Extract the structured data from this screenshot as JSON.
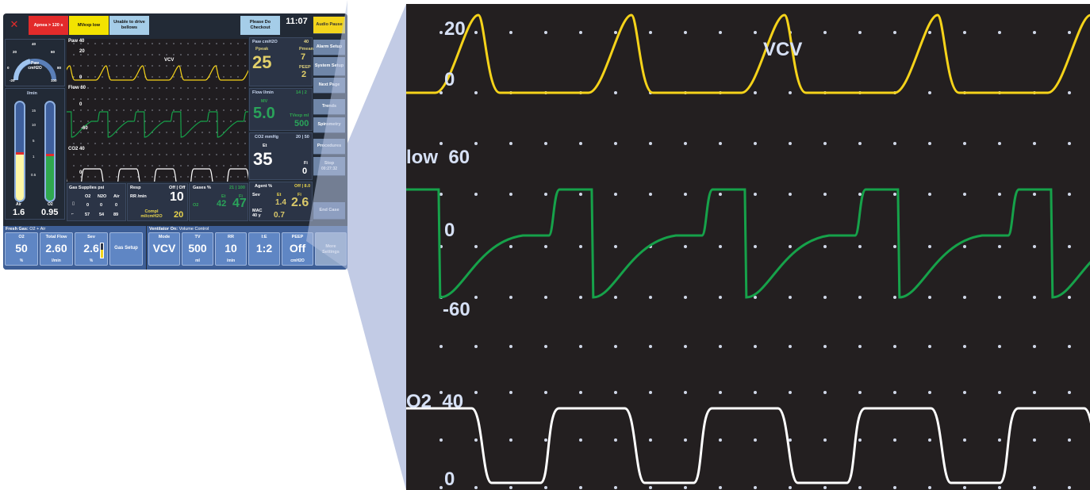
{
  "alarms": [
    {
      "text": "Apnea > 120 s",
      "color": "#e32b2b",
      "fg": "#ffffff"
    },
    {
      "text": "MVexp low",
      "color": "#f3e300",
      "fg": "#1a1a1a"
    },
    {
      "text": "Unable to drive bellows",
      "color": "#a5cde8",
      "fg": "#1a1a1a"
    },
    {
      "text": "Please Do Checkout",
      "color": "#a5cde8",
      "fg": "#1a1a1a"
    }
  ],
  "clock": "11:07",
  "side_buttons": [
    "Audio Pause",
    "Alarm Setup",
    "System Setup",
    "Next Page",
    "Trends",
    "Spirometry",
    "Procedures"
  ],
  "timer": {
    "label": "Stop",
    "value": "00:27:32"
  },
  "end_case": "End Case",
  "gauge": {
    "label": "Paw",
    "unit": "cmH2O",
    "ticks": [
      "-20",
      "0",
      "20",
      "40",
      "60",
      "80",
      "100"
    ]
  },
  "flowtubes": {
    "unit": "l/min",
    "scale": [
      "15",
      "10",
      "5",
      "1",
      "0.5"
    ],
    "air_label": "Air",
    "air_value": "1.6",
    "o2_label": "O2",
    "o2_value": "0.95"
  },
  "waves": {
    "paw": {
      "label": "Paw",
      "top": "40",
      "mid": "20",
      "bottom": "0",
      "mode": "VCV"
    },
    "flow": {
      "label": "Flow",
      "top": "60",
      "mid": "0",
      "bottom": "-60"
    },
    "co2": {
      "label": "CO2",
      "top": "40",
      "bottom": "0"
    }
  },
  "paw_numeric": {
    "title": "Paw cmH2O",
    "limit": "40",
    "ppeak_label": "Ppeak",
    "ppeak": "25",
    "pmean_label": "Pmean",
    "pmean": "7",
    "peep_label": "PEEP",
    "peep": "2"
  },
  "flow_numeric": {
    "title": "Flow l/min",
    "limits": "14 | 2",
    "mv_label": "MV",
    "mv": "5.0",
    "tvexp_label": "TVexp ml",
    "tvexp": "500"
  },
  "co2_numeric": {
    "title": "CO2 mmHg",
    "limits": "20 | 50",
    "et_label": "Et",
    "et": "35",
    "fi_label": "Fi",
    "fi": "0"
  },
  "gas_supplies": {
    "title": "Gas Supplies psi",
    "headers": [
      "O2",
      "N2O",
      "Air"
    ],
    "row1": [
      "0",
      "0",
      "0"
    ],
    "row2": [
      "57",
      "54",
      "89"
    ]
  },
  "resp": {
    "title": "Resp",
    "status": "Off | Off",
    "rr_label": "RR /min",
    "rr": "10",
    "compl_label": "Compl ml/cmH2O",
    "compl": "20"
  },
  "gases": {
    "title": "Gases %",
    "limits": "21 | 100",
    "et_label": "Et",
    "fi_label": "Fi",
    "o2_label": "O2",
    "et": "42",
    "fi": "47"
  },
  "agent": {
    "title": "Agent %",
    "limits": "Off | 8.0",
    "sev_label": "Sev",
    "et_label": "Et",
    "fi_label": "Fi",
    "et": "1.4",
    "fi": "2.6",
    "mac_label": "MAC 40 y",
    "mac": "0.7"
  },
  "fresh_gas": {
    "title": "Fresh Gas:",
    "mix": "O2 + Air",
    "o2_label": "O2",
    "o2": "50",
    "o2_unit": "%",
    "total_label": "Total Flow",
    "total": "2.60",
    "total_unit": "l/min",
    "sev_label": "Sev",
    "sev": "2.6",
    "sev_unit": "%",
    "setup": "Gas Setup"
  },
  "ventilator": {
    "title": "Ventilator On:",
    "mode_desc": "Volume Control",
    "settings": [
      {
        "label": "Mode",
        "value": "VCV",
        "unit": ""
      },
      {
        "label": "TV",
        "value": "500",
        "unit": "ml"
      },
      {
        "label": "RR",
        "value": "10",
        "unit": "/min"
      },
      {
        "label": "I:E",
        "value": "1:2",
        "unit": ""
      },
      {
        "label": "PEEP",
        "value": "Off",
        "unit": "cmH2O"
      }
    ],
    "more": "More Settings"
  },
  "zoom": {
    "paw_top": "20",
    "paw_zero": "0",
    "paw_mode": "VCV",
    "flow_label": "low",
    "flow_top": "60",
    "flow_zero": "0",
    "flow_bottom": "-60",
    "co2_label": "O2",
    "co2_top": "40",
    "co2_zero": "0"
  },
  "colors": {
    "paw": "#f5d31a",
    "flow": "#16a24a",
    "co2": "#ffffff",
    "background": "#231f20",
    "panel": "#222a36"
  }
}
